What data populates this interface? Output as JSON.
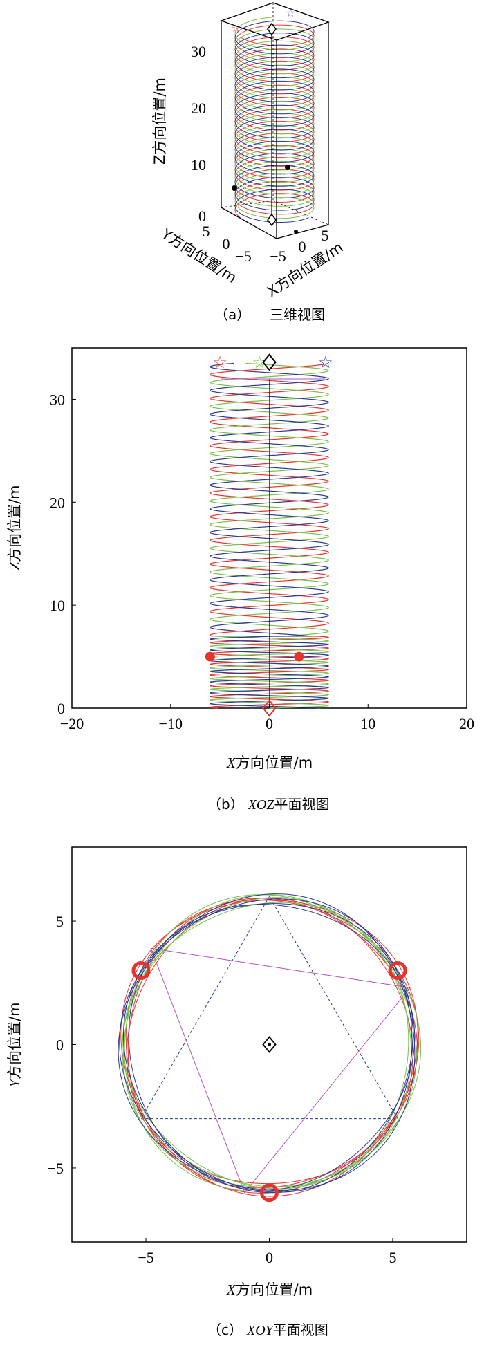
{
  "colors": {
    "red": "#e8332d",
    "green": "#77bf4b",
    "blue": "#2a3a8f",
    "magenta": "#b04fc0",
    "black": "#000000"
  },
  "panel_a": {
    "caption_letter": "（a）",
    "caption_text": "三维视图",
    "zlabel": "Z方向位置/m",
    "ylabel": "Y方向位置/m",
    "xlabel": "X方向位置/m",
    "z_ticks": [
      "0",
      "10",
      "20",
      "30"
    ],
    "y_ticks": [
      "5",
      "0",
      "−5"
    ],
    "x_ticks": [
      "−5",
      "0",
      "5"
    ]
  },
  "panel_b": {
    "caption_letter": "（b）",
    "caption_italic": "XOZ",
    "caption_text": "平面视图",
    "xlabel_italic": "X",
    "xlabel_text": "方向位置/m",
    "ylabel_italic": "Z",
    "ylabel_text": "方向位置/m",
    "x_ticks": [
      "−20",
      "−10",
      "0",
      "10",
      "20"
    ],
    "y_ticks": [
      "0",
      "10",
      "20",
      "30"
    ]
  },
  "panel_c": {
    "caption_letter": "（c）",
    "caption_italic": "XOY",
    "caption_text": "平面视图",
    "xlabel_italic": "X",
    "xlabel_text": "方向位置/m",
    "ylabel_italic": "Y",
    "ylabel_text": "方向位置/m",
    "x_ticks": [
      "−5",
      "0",
      "5"
    ],
    "y_ticks": [
      "−5",
      "0",
      "5"
    ]
  },
  "chart_data": [
    {
      "type": "line",
      "panel": "a",
      "projection": "3d",
      "xlim": [
        -6,
        6
      ],
      "ylim": [
        -6,
        6
      ],
      "zlim": [
        0,
        34
      ],
      "series": [
        {
          "color": "red",
          "helix_radius": 6,
          "phase_deg": 150,
          "z_start": 0,
          "z_end": 33.5,
          "turns": 15
        },
        {
          "color": "green",
          "helix_radius": 6,
          "phase_deg": 270,
          "z_start": 0,
          "z_end": 33.5,
          "turns": 15
        },
        {
          "color": "blue",
          "helix_radius": 6,
          "phase_deg": 30,
          "z_start": 0,
          "z_end": 33.5,
          "turns": 15
        }
      ],
      "markers": [
        {
          "symbol": "diamond",
          "x": 0,
          "y": 0,
          "z": 0
        },
        {
          "symbol": "diamond",
          "x": 0,
          "y": 0,
          "z": 33.5
        },
        {
          "symbol": "star",
          "color": "red",
          "z": 33.5
        },
        {
          "symbol": "star",
          "color": "blue",
          "z": 33.5
        }
      ]
    },
    {
      "type": "line",
      "panel": "b",
      "xlim": [
        -20,
        20
      ],
      "ylim": [
        0,
        35
      ],
      "series": [
        {
          "color": "red",
          "amplitude": 6,
          "phase_deg": 150,
          "z_end": 33.5,
          "period_z": 2.3
        },
        {
          "color": "green",
          "amplitude": 6,
          "phase_deg": 270,
          "z_end": 33.5,
          "period_z": 2.3
        },
        {
          "color": "blue",
          "amplitude": 6,
          "phase_deg": 30,
          "z_end": 33.5,
          "period_z": 2.3
        }
      ],
      "markers": [
        {
          "symbol": "star",
          "color": "red",
          "x": -5,
          "z": 33.6
        },
        {
          "symbol": "star",
          "color": "green",
          "x": -1,
          "z": 33.6
        },
        {
          "symbol": "star",
          "color": "blue",
          "x": 5.7,
          "z": 33.6
        },
        {
          "symbol": "diamond",
          "color": "black",
          "x": 0,
          "z": 33.6
        },
        {
          "symbol": "diamond",
          "color": "red",
          "x": 0,
          "z": 0
        },
        {
          "symbol": "dot",
          "color": "red",
          "x": -6,
          "z": 5
        },
        {
          "symbol": "dot",
          "color": "red",
          "x": 3,
          "z": 5
        }
      ]
    },
    {
      "type": "line",
      "panel": "c",
      "xlim": [
        -8,
        8
      ],
      "ylim": [
        -8,
        8
      ],
      "series": [
        {
          "color": "red",
          "radius": 6,
          "center": [
            0,
            0
          ]
        },
        {
          "color": "green",
          "radius": 6,
          "center": [
            0,
            0
          ]
        },
        {
          "color": "blue",
          "radius": 6,
          "center": [
            0,
            0
          ]
        }
      ],
      "triangle_dashed": [
        [
          0,
          6
        ],
        [
          -5.2,
          -3
        ],
        [
          5.2,
          -3
        ]
      ],
      "triangle_magenta": [
        [
          -4.8,
          3.9
        ],
        [
          5.7,
          2.3
        ],
        [
          -1,
          -6
        ]
      ],
      "markers": [
        {
          "symbol": "ring",
          "color": "red",
          "x": -5.2,
          "y": 3.0
        },
        {
          "symbol": "ring",
          "color": "red",
          "x": 5.2,
          "y": 3.0
        },
        {
          "symbol": "ring",
          "color": "red",
          "x": 0,
          "y": -6.0
        },
        {
          "symbol": "diamond-dot",
          "color": "black",
          "x": 0,
          "y": 0
        }
      ]
    }
  ]
}
